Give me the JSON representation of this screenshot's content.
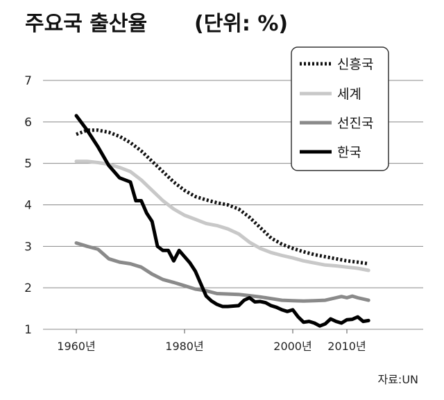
{
  "chart_data": {
    "type": "line",
    "title": "주요국 출산율",
    "unit_label": "(단위: %)",
    "source": "자료:UN",
    "ylim": [
      1,
      7
    ],
    "y_ticks": [
      "1",
      "2",
      "3",
      "4",
      "5",
      "6",
      "7"
    ],
    "xlim": [
      1960,
      2015
    ],
    "x_ticks": [
      {
        "x": 1960,
        "label": "1960년"
      },
      {
        "x": 1980,
        "label": "1980년"
      },
      {
        "x": 2000,
        "label": "2000년"
      },
      {
        "x": 2010,
        "label": "2010년"
      }
    ],
    "grid": true,
    "legend_position": "top-right",
    "series": [
      {
        "name": "신흥국",
        "color": "#111111",
        "style": "dotted",
        "points": [
          [
            1960,
            5.7
          ],
          [
            1962,
            5.8
          ],
          [
            1964,
            5.8
          ],
          [
            1966,
            5.75
          ],
          [
            1968,
            5.65
          ],
          [
            1970,
            5.5
          ],
          [
            1972,
            5.3
          ],
          [
            1974,
            5.05
          ],
          [
            1976,
            4.8
          ],
          [
            1978,
            4.55
          ],
          [
            1980,
            4.35
          ],
          [
            1982,
            4.2
          ],
          [
            1984,
            4.12
          ],
          [
            1986,
            4.05
          ],
          [
            1988,
            4.0
          ],
          [
            1990,
            3.9
          ],
          [
            1992,
            3.7
          ],
          [
            1994,
            3.45
          ],
          [
            1996,
            3.2
          ],
          [
            1998,
            3.05
          ],
          [
            2000,
            2.95
          ],
          [
            2002,
            2.87
          ],
          [
            2004,
            2.8
          ],
          [
            2006,
            2.75
          ],
          [
            2008,
            2.7
          ],
          [
            2010,
            2.65
          ],
          [
            2012,
            2.62
          ],
          [
            2014,
            2.58
          ]
        ]
      },
      {
        "name": "세계",
        "color": "#c8c8c8",
        "style": "solid",
        "points": [
          [
            1960,
            5.05
          ],
          [
            1962,
            5.05
          ],
          [
            1964,
            5.02
          ],
          [
            1966,
            4.98
          ],
          [
            1968,
            4.9
          ],
          [
            1970,
            4.8
          ],
          [
            1972,
            4.6
          ],
          [
            1974,
            4.35
          ],
          [
            1976,
            4.1
          ],
          [
            1978,
            3.9
          ],
          [
            1980,
            3.75
          ],
          [
            1982,
            3.65
          ],
          [
            1984,
            3.55
          ],
          [
            1986,
            3.5
          ],
          [
            1988,
            3.42
          ],
          [
            1990,
            3.3
          ],
          [
            1992,
            3.1
          ],
          [
            1994,
            2.95
          ],
          [
            1996,
            2.85
          ],
          [
            1998,
            2.78
          ],
          [
            2000,
            2.72
          ],
          [
            2002,
            2.65
          ],
          [
            2004,
            2.6
          ],
          [
            2006,
            2.55
          ],
          [
            2008,
            2.53
          ],
          [
            2010,
            2.5
          ],
          [
            2012,
            2.47
          ],
          [
            2014,
            2.42
          ]
        ]
      },
      {
        "name": "선진국",
        "color": "#8a8a8a",
        "style": "solid",
        "points": [
          [
            1960,
            3.08
          ],
          [
            1962,
            3.0
          ],
          [
            1964,
            2.93
          ],
          [
            1966,
            2.7
          ],
          [
            1968,
            2.62
          ],
          [
            1970,
            2.58
          ],
          [
            1972,
            2.5
          ],
          [
            1974,
            2.33
          ],
          [
            1976,
            2.2
          ],
          [
            1978,
            2.13
          ],
          [
            1980,
            2.05
          ],
          [
            1982,
            1.97
          ],
          [
            1984,
            1.93
          ],
          [
            1986,
            1.86
          ],
          [
            1988,
            1.85
          ],
          [
            1990,
            1.84
          ],
          [
            1992,
            1.81
          ],
          [
            1994,
            1.78
          ],
          [
            1996,
            1.74
          ],
          [
            1998,
            1.7
          ],
          [
            2000,
            1.69
          ],
          [
            2002,
            1.68
          ],
          [
            2004,
            1.69
          ],
          [
            2006,
            1.7
          ],
          [
            2008,
            1.76
          ],
          [
            2009,
            1.79
          ],
          [
            2010,
            1.76
          ],
          [
            2011,
            1.8
          ],
          [
            2012,
            1.76
          ],
          [
            2014,
            1.7
          ]
        ]
      },
      {
        "name": "한국",
        "color": "#000000",
        "style": "solid",
        "points": [
          [
            1960,
            6.15
          ],
          [
            1962,
            5.8
          ],
          [
            1964,
            5.4
          ],
          [
            1966,
            4.95
          ],
          [
            1968,
            4.65
          ],
          [
            1970,
            4.55
          ],
          [
            1971,
            4.1
          ],
          [
            1972,
            4.1
          ],
          [
            1973,
            3.8
          ],
          [
            1974,
            3.6
          ],
          [
            1975,
            3.0
          ],
          [
            1976,
            2.9
          ],
          [
            1977,
            2.9
          ],
          [
            1978,
            2.65
          ],
          [
            1979,
            2.9
          ],
          [
            1980,
            2.75
          ],
          [
            1981,
            2.6
          ],
          [
            1982,
            2.4
          ],
          [
            1983,
            2.1
          ],
          [
            1984,
            1.8
          ],
          [
            1985,
            1.68
          ],
          [
            1986,
            1.6
          ],
          [
            1987,
            1.55
          ],
          [
            1988,
            1.55
          ],
          [
            1990,
            1.57
          ],
          [
            1991,
            1.7
          ],
          [
            1992,
            1.76
          ],
          [
            1993,
            1.66
          ],
          [
            1994,
            1.67
          ],
          [
            1995,
            1.64
          ],
          [
            1996,
            1.57
          ],
          [
            1997,
            1.53
          ],
          [
            1998,
            1.47
          ],
          [
            1999,
            1.43
          ],
          [
            2000,
            1.47
          ],
          [
            2001,
            1.3
          ],
          [
            2002,
            1.17
          ],
          [
            2003,
            1.19
          ],
          [
            2004,
            1.15
          ],
          [
            2005,
            1.08
          ],
          [
            2006,
            1.13
          ],
          [
            2007,
            1.25
          ],
          [
            2008,
            1.19
          ],
          [
            2009,
            1.15
          ],
          [
            2010,
            1.23
          ],
          [
            2011,
            1.24
          ],
          [
            2012,
            1.3
          ],
          [
            2013,
            1.19
          ],
          [
            2014,
            1.21
          ]
        ]
      }
    ]
  }
}
